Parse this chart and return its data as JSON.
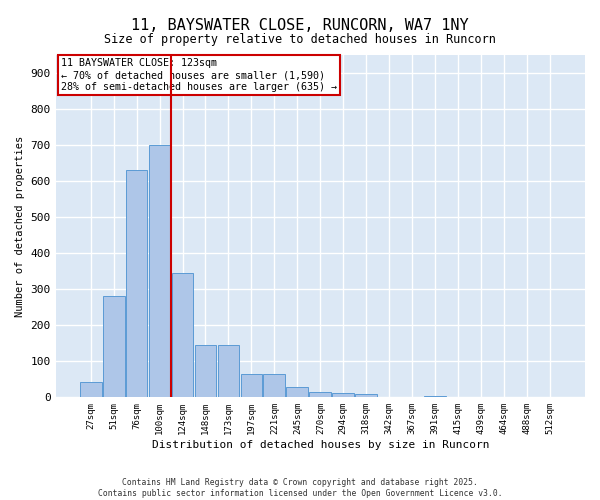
{
  "title": "11, BAYSWATER CLOSE, RUNCORN, WA7 1NY",
  "subtitle": "Size of property relative to detached houses in Runcorn",
  "xlabel": "Distribution of detached houses by size in Runcorn",
  "ylabel": "Number of detached properties",
  "bar_color": "#aec6e8",
  "bar_edge_color": "#5b9bd5",
  "background_color": "#dce8f5",
  "grid_color": "#ffffff",
  "annotation_text": "11 BAYSWATER CLOSE: 123sqm\n← 70% of detached houses are smaller (1,590)\n28% of semi-detached houses are larger (635) →",
  "vline_color": "#cc0000",
  "categories": [
    "27sqm",
    "51sqm",
    "76sqm",
    "100sqm",
    "124sqm",
    "148sqm",
    "173sqm",
    "197sqm",
    "221sqm",
    "245sqm",
    "270sqm",
    "294sqm",
    "318sqm",
    "342sqm",
    "367sqm",
    "391sqm",
    "415sqm",
    "439sqm",
    "464sqm",
    "488sqm",
    "512sqm"
  ],
  "values": [
    42,
    280,
    630,
    700,
    345,
    145,
    145,
    65,
    65,
    28,
    15,
    13,
    8,
    0,
    0,
    5,
    0,
    0,
    0,
    0,
    0
  ],
  "ylim": [
    0,
    950
  ],
  "yticks": [
    0,
    100,
    200,
    300,
    400,
    500,
    600,
    700,
    800,
    900
  ],
  "footer": "Contains HM Land Registry data © Crown copyright and database right 2025.\nContains public sector information licensed under the Open Government Licence v3.0.",
  "figsize": [
    6.0,
    5.0
  ],
  "dpi": 100
}
